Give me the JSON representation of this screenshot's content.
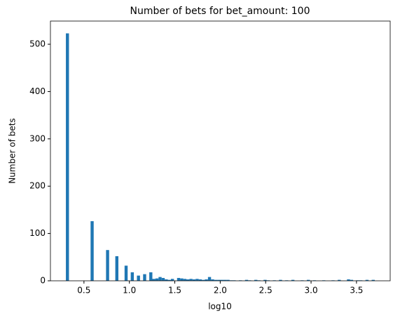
{
  "chart_data": {
    "type": "histogram",
    "title": "Number of bets for bet_amount: 100",
    "x_label": "log10",
    "y_label": "Number of bets",
    "color": "#1f77b4",
    "bins": [
      0.301,
      0.335,
      0.369,
      0.403,
      0.437,
      0.471,
      0.505,
      0.539,
      0.573,
      0.607,
      0.641,
      0.675,
      0.709,
      0.743,
      0.777,
      0.811,
      0.845,
      0.879,
      0.913,
      0.947,
      0.981,
      1.015,
      1.049,
      1.083,
      1.117,
      1.151,
      1.185,
      1.219,
      1.253,
      1.287,
      1.321,
      1.355,
      1.389,
      1.423,
      1.457,
      1.491,
      1.525,
      1.559,
      1.593,
      1.627,
      1.661,
      1.695,
      1.729,
      1.763,
      1.797,
      1.831,
      1.865,
      1.899,
      1.933,
      1.967,
      2.001,
      2.035,
      2.069,
      2.103,
      2.137,
      2.171,
      2.205,
      2.239,
      2.273,
      2.307,
      2.341,
      2.375,
      2.409,
      2.443,
      2.477,
      2.511,
      2.545,
      2.579,
      2.613,
      2.647,
      2.681,
      2.715,
      2.749,
      2.783,
      2.817,
      2.851,
      2.885,
      2.919,
      2.953,
      2.987,
      3.021,
      3.055,
      3.089,
      3.123,
      3.157,
      3.191,
      3.225,
      3.259,
      3.293,
      3.327,
      3.361,
      3.395,
      3.429,
      3.463,
      3.497,
      3.531,
      3.565,
      3.599,
      3.633,
      3.667,
      3.701
    ],
    "values": [
      523,
      0,
      0,
      0,
      0,
      0,
      0,
      0,
      126,
      0,
      0,
      0,
      0,
      65,
      0,
      0,
      52,
      0,
      0,
      32,
      0,
      18,
      0,
      11,
      0,
      14,
      0,
      18,
      4,
      5,
      8,
      6,
      3,
      2,
      4,
      0,
      6,
      5,
      4,
      3,
      4,
      3,
      4,
      3,
      2,
      3,
      8,
      3,
      2,
      2,
      2,
      2,
      2,
      1,
      1,
      0,
      1,
      0,
      2,
      1,
      0,
      2,
      1,
      0,
      2,
      1,
      0,
      1,
      0,
      2,
      0,
      1,
      0,
      2,
      0,
      0,
      1,
      0,
      2,
      0,
      1,
      0,
      0,
      1,
      0,
      0,
      1,
      0,
      2,
      0,
      0,
      3,
      2,
      0,
      1,
      1,
      0,
      2,
      0,
      2
    ],
    "xlim": [
      0.131,
      3.871
    ],
    "ylim": [
      0,
      549
    ],
    "xticks": [
      0.5,
      {
        "value": 1,
        "label": "1.0"
      },
      1.5,
      {
        "value": 2,
        "label": "2.0"
      },
      2.5,
      {
        "value": 3,
        "label": "3.0"
      },
      3.5
    ],
    "yticks": [
      0,
      100,
      200,
      300,
      400,
      500
    ]
  }
}
